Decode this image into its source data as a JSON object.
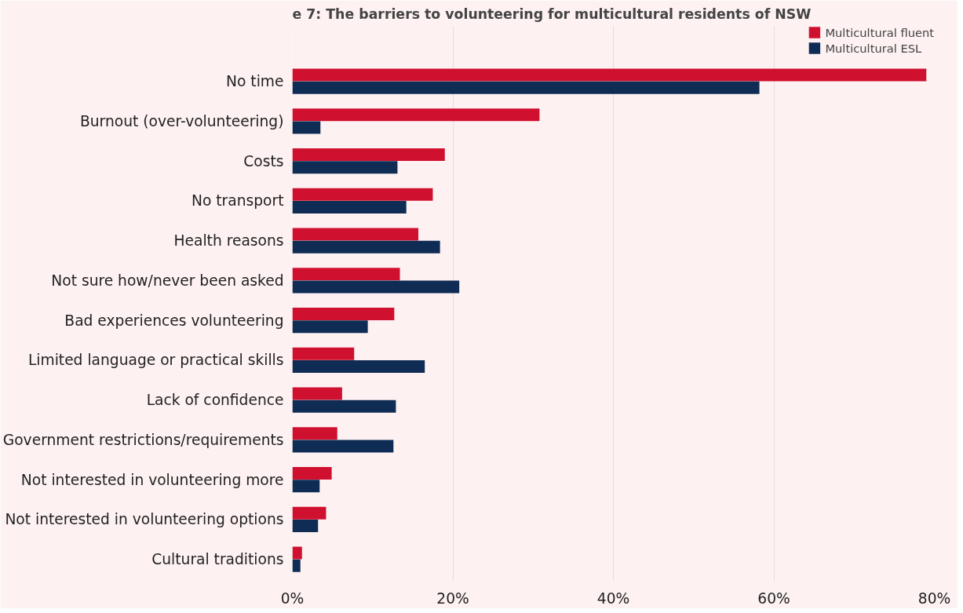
{
  "chart_data": {
    "type": "bar",
    "orientation": "horizontal",
    "title": "e 7: The barriers to volunteering for multicultural residents of NSW",
    "categories": [
      "No time",
      "Burnout (over-volunteering)",
      "Costs",
      "No transport",
      "Health reasons",
      "Not sure how/never been asked",
      "Bad experiences volunteering",
      "Limited language or practical skills",
      "Lack of confidence",
      "Government restrictions/requirements",
      "Not interested in volunteering more",
      "Not interested in volunteering options",
      "Cultural traditions"
    ],
    "series": [
      {
        "name": "Multicultural fluent",
        "color": "#d0102f",
        "values": [
          79.0,
          30.8,
          19.0,
          17.5,
          15.7,
          13.4,
          12.7,
          7.7,
          6.2,
          5.6,
          4.9,
          4.2,
          1.2
        ]
      },
      {
        "name": "Multicultural ESL",
        "color": "#0f2d54",
        "values": [
          58.2,
          3.5,
          13.1,
          14.2,
          18.4,
          20.8,
          9.4,
          16.5,
          12.9,
          12.6,
          3.4,
          3.2,
          1.0
        ]
      }
    ],
    "xlim": [
      0,
      80
    ],
    "xticks": [
      {
        "value": 0,
        "label": "0%"
      },
      {
        "value": 20,
        "label": "20%"
      },
      {
        "value": 40,
        "label": "40%"
      },
      {
        "value": 60,
        "label": "60%"
      },
      {
        "value": 80,
        "label": "80%"
      }
    ],
    "grid": "x",
    "legend": "top right"
  }
}
